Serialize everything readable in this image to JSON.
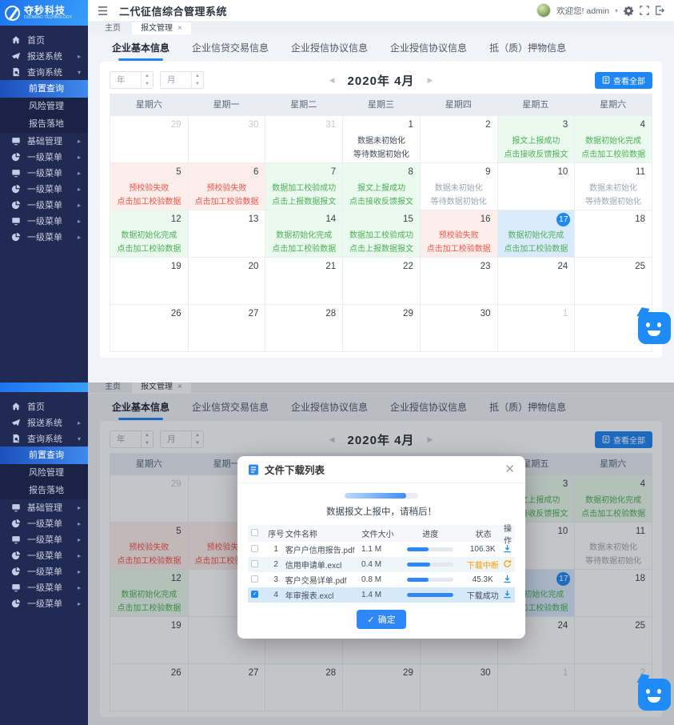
{
  "brand": {
    "name": "夺秒科技",
    "subtitle": "DUOMIAO TECHNOLOGY"
  },
  "topbar": {
    "title": "二代征信综合管理系统",
    "welcome": "欢迎您! admin"
  },
  "tabs": [
    {
      "label": "主页"
    },
    {
      "label": "报文管理",
      "active": true,
      "closable": true
    }
  ],
  "sidebar": {
    "items": [
      {
        "label": "首页",
        "icon": "home"
      },
      {
        "label": "报送系统",
        "icon": "send",
        "arrow": "right"
      },
      {
        "label": "查询系统",
        "icon": "doc",
        "arrow": "down",
        "open": true
      },
      {
        "label": "前置查询",
        "sub": true,
        "active": true
      },
      {
        "label": "风险管理",
        "sub": true
      },
      {
        "label": "报告落地",
        "sub": true
      },
      {
        "label": "基础管理",
        "icon": "monitor",
        "arrow": "right"
      },
      {
        "label": "一级菜单",
        "icon": "pie",
        "arrow": "right"
      },
      {
        "label": "一级菜单",
        "icon": "monitor",
        "arrow": "right"
      },
      {
        "label": "一级菜单",
        "icon": "pie",
        "arrow": "right"
      },
      {
        "label": "一级菜单",
        "icon": "pie",
        "arrow": "right"
      },
      {
        "label": "一级菜单",
        "icon": "monitor",
        "arrow": "right"
      },
      {
        "label": "一级菜单",
        "icon": "pie",
        "arrow": "right"
      }
    ]
  },
  "subtabs": [
    "企业基本信息",
    "企业信贷交易信息",
    "企业授信协议信息",
    "企业授信协议信息",
    "抵（质）押物信息"
  ],
  "calendar": {
    "year_placeholder": "年",
    "month_placeholder": "月",
    "title": "2020年  4月",
    "view_all": "查看全部",
    "weekdays": [
      "星期六",
      "星期一",
      "星期二",
      "星期三",
      "星期四",
      "星期五",
      "星期六"
    ],
    "cells": [
      {
        "day": "29",
        "other": true
      },
      {
        "day": "30",
        "other": true
      },
      {
        "day": "31",
        "other": true
      },
      {
        "day": "1",
        "type": "plain",
        "lines": [
          "数据未初始化",
          "等待数据初始化"
        ]
      },
      {
        "day": "2"
      },
      {
        "day": "3",
        "type": "green",
        "lines": [
          "报文上报成功",
          "点击接收反馈报文"
        ]
      },
      {
        "day": "4",
        "type": "green",
        "lines": [
          "数据初始化完成",
          "点击加工校验数据"
        ]
      },
      {
        "day": "5",
        "type": "red",
        "lines": [
          "预校验失败",
          "点击加工校验数据"
        ]
      },
      {
        "day": "6",
        "type": "red",
        "lines": [
          "预校验失败",
          "点击加工校验数据"
        ]
      },
      {
        "day": "7",
        "type": "green",
        "lines": [
          "数据加工校验成功",
          "点击上报数据报文"
        ]
      },
      {
        "day": "8",
        "type": "green",
        "lines": [
          "报文上报成功",
          "点击接收反馈报文"
        ]
      },
      {
        "day": "9",
        "type": "muted",
        "lines": [
          "数据未初始化",
          "等待数据初始化"
        ]
      },
      {
        "day": "10"
      },
      {
        "day": "11",
        "type": "muted",
        "lines": [
          "数据未初始化",
          "等待数据初始化"
        ]
      },
      {
        "day": "12",
        "type": "green",
        "lines": [
          "数据初始化完成",
          "点击加工校验数据"
        ]
      },
      {
        "day": "13"
      },
      {
        "day": "14",
        "type": "green",
        "lines": [
          "数据初始化完成",
          "点击加工校验数据"
        ]
      },
      {
        "day": "15",
        "type": "green",
        "lines": [
          "数据加工校验成功",
          "点击上报数据报文"
        ]
      },
      {
        "day": "16",
        "type": "red",
        "lines": [
          "预校验失败",
          "点击加工校验数据"
        ]
      },
      {
        "day": "17",
        "type": "today",
        "lines": [
          "数据初始化完成",
          "点击加工校验数据"
        ]
      },
      {
        "day": "18"
      },
      {
        "day": "19"
      },
      {
        "day": "20"
      },
      {
        "day": "21"
      },
      {
        "day": "22"
      },
      {
        "day": "23"
      },
      {
        "day": "24"
      },
      {
        "day": "25"
      },
      {
        "day": "26"
      },
      {
        "day": "27"
      },
      {
        "day": "28"
      },
      {
        "day": "29"
      },
      {
        "day": "30"
      },
      {
        "day": "1",
        "other": true
      },
      {
        "day": "2",
        "other": true
      }
    ]
  },
  "modal": {
    "title": "文件下载列表",
    "message": "数据报文上报中，请稍后！",
    "progress_percent": 84,
    "confirm_label": "确定",
    "table": {
      "headers": [
        "序号",
        "文件名称",
        "文件大小",
        "进度",
        "状态",
        "操作"
      ],
      "rows": [
        {
          "no": "1",
          "name": "客户户信用报告.pdf",
          "size": "1.1 M",
          "progress": 47,
          "status": "106.3K",
          "status_type": "normal",
          "action": "download",
          "checked": false
        },
        {
          "no": "2",
          "name": "信用申请单.excl",
          "size": "0.4 M",
          "progress": 50,
          "status": "下载中断",
          "status_type": "interrupted",
          "action": "refresh",
          "checked": false,
          "alt": true
        },
        {
          "no": "3",
          "name": "客户交易详单.pdf",
          "size": "0.8 M",
          "progress": 47,
          "status": "45.3K",
          "status_type": "normal",
          "action": "download",
          "checked": false
        },
        {
          "no": "4",
          "name": "年审报表.excl",
          "size": "1.4 M",
          "progress": 100,
          "status": "下载成功",
          "status_type": "success",
          "action": "download",
          "checked": true,
          "selected": true
        }
      ]
    }
  },
  "colors": {
    "accent": "#1e86f5",
    "navy": "#212a52",
    "green": "#4db056",
    "red": "#f2564a",
    "orange": "#ff9900"
  }
}
